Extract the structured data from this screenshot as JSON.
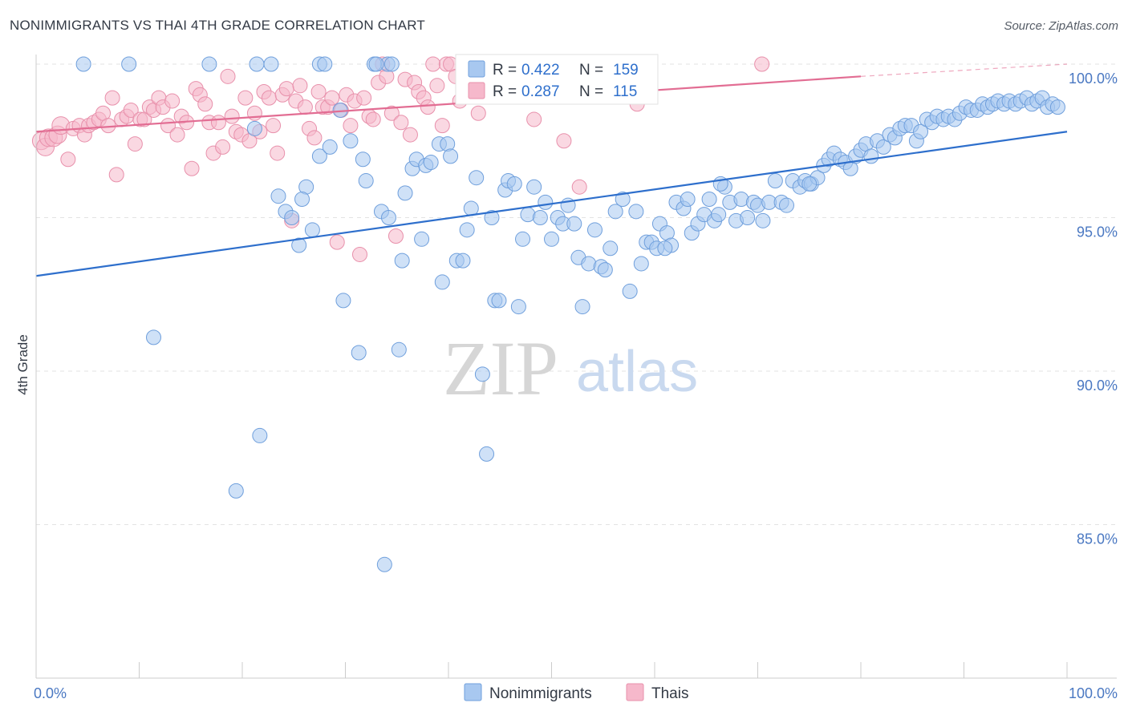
{
  "header": {
    "title": "NONIMMIGRANTS VS THAI 4TH GRADE CORRELATION CHART",
    "source": "Source: ZipAtlas.com"
  },
  "watermark": {
    "zip": "ZIP",
    "atlas": "atlas"
  },
  "chart_data": {
    "type": "scatter",
    "ylabel": "4th Grade",
    "xlim": [
      0,
      100
    ],
    "ylim": [
      80.5,
      100.6
    ],
    "x_ticks": [
      {
        "value": 0,
        "label": "0.0%"
      },
      {
        "value": 100,
        "label": "100.0%"
      }
    ],
    "y_ticks": [
      {
        "value": 100,
        "label": "100.0%"
      },
      {
        "value": 95,
        "label": "95.0%"
      },
      {
        "value": 90,
        "label": "90.0%"
      },
      {
        "value": 85,
        "label": "85.0%"
      }
    ],
    "legend_inset": {
      "position": "top-center",
      "rows": [
        {
          "series": "Nonimmigrants",
          "r_label": "R = ",
          "r_value": "0.422",
          "n_label": "N = ",
          "n_value": "159"
        },
        {
          "series": "Thais",
          "r_label": "R = ",
          "r_value": "0.287",
          "n_label": "N = ",
          "n_value": "115"
        }
      ]
    },
    "legend_bottom": [
      "Nonimmigrants",
      "Thais"
    ],
    "colors": {
      "Nonimmigrants": {
        "fill": "#a8c8f0",
        "stroke": "#6f9fdc",
        "line": "#2e6fcc"
      },
      "Thais": {
        "fill": "#f6b8cb",
        "stroke": "#e890ab",
        "line": "#e26d93"
      }
    },
    "series": [
      {
        "name": "Nonimmigrants",
        "trend": {
          "x": [
            0,
            100
          ],
          "y": [
            93.1,
            97.8
          ]
        },
        "points": [
          [
            4.6,
            100
          ],
          [
            9,
            100
          ],
          [
            16.8,
            100
          ],
          [
            21.4,
            100
          ],
          [
            22.8,
            100
          ],
          [
            27.5,
            100
          ],
          [
            28,
            100
          ],
          [
            34.1,
            100
          ],
          [
            34.5,
            100
          ],
          [
            11.4,
            91.1
          ],
          [
            19.4,
            86.1
          ],
          [
            21.7,
            87.9
          ],
          [
            25.5,
            94.1
          ],
          [
            26.2,
            96.0
          ],
          [
            27.5,
            97.0
          ],
          [
            28.5,
            97.3
          ],
          [
            29.5,
            98.5
          ],
          [
            23.5,
            95.7
          ],
          [
            24.2,
            95.2
          ],
          [
            24.8,
            95.0
          ],
          [
            25.8,
            95.6
          ],
          [
            26.8,
            94.6
          ],
          [
            29.8,
            92.3
          ],
          [
            30.5,
            97.5
          ],
          [
            31.3,
            90.6
          ],
          [
            31.7,
            96.9
          ],
          [
            32,
            96.2
          ],
          [
            32.8,
            100
          ],
          [
            33,
            100
          ],
          [
            33.5,
            95.2
          ],
          [
            33.8,
            83.7
          ],
          [
            34.2,
            95.0
          ],
          [
            35.2,
            90.7
          ],
          [
            35.5,
            93.6
          ],
          [
            35.8,
            95.8
          ],
          [
            36.5,
            96.6
          ],
          [
            36.9,
            96.9
          ],
          [
            37.4,
            94.3
          ],
          [
            37.8,
            96.7
          ],
          [
            38.3,
            96.8
          ],
          [
            39.1,
            97.4
          ],
          [
            39.4,
            92.9
          ],
          [
            39.9,
            97.4
          ],
          [
            40.2,
            97.0
          ],
          [
            40.8,
            93.6
          ],
          [
            41.4,
            93.6
          ],
          [
            41.8,
            94.6
          ],
          [
            42.2,
            95.3
          ],
          [
            42.7,
            96.3
          ],
          [
            43.3,
            89.9
          ],
          [
            43.7,
            87.3
          ],
          [
            44.2,
            95.0
          ],
          [
            44.5,
            92.3
          ],
          [
            44.9,
            92.3
          ],
          [
            45.5,
            95.9
          ],
          [
            45.8,
            96.2
          ],
          [
            46.4,
            96.1
          ],
          [
            46.8,
            92.1
          ],
          [
            47.2,
            94.3
          ],
          [
            47.7,
            95.1
          ],
          [
            48.3,
            96.0
          ],
          [
            48.9,
            95.0
          ],
          [
            49.4,
            95.5
          ],
          [
            50.0,
            94.3
          ],
          [
            50.6,
            95.0
          ],
          [
            51.1,
            94.8
          ],
          [
            51.6,
            95.4
          ],
          [
            52.2,
            94.8
          ],
          [
            52.6,
            93.7
          ],
          [
            53.0,
            92.1
          ],
          [
            53.6,
            93.5
          ],
          [
            54.2,
            94.6
          ],
          [
            54.8,
            93.4
          ],
          [
            55.2,
            93.3
          ],
          [
            55.7,
            94.0
          ],
          [
            56.2,
            95.2
          ],
          [
            56.9,
            95.6
          ],
          [
            57.6,
            92.6
          ],
          [
            58.2,
            95.2
          ],
          [
            58.7,
            93.5
          ],
          [
            59.2,
            94.2
          ],
          [
            59.7,
            94.2
          ],
          [
            60.2,
            94.0
          ],
          [
            60.5,
            94.8
          ],
          [
            61.2,
            94.5
          ],
          [
            61.6,
            94.1
          ],
          [
            62.1,
            95.5
          ],
          [
            62.8,
            95.3
          ],
          [
            63.2,
            95.6
          ],
          [
            63.6,
            94.5
          ],
          [
            64.2,
            94.8
          ],
          [
            64.8,
            95.1
          ],
          [
            65.3,
            95.6
          ],
          [
            65.8,
            94.9
          ],
          [
            66.2,
            95.1
          ],
          [
            66.8,
            96.0
          ],
          [
            67.3,
            95.5
          ],
          [
            67.9,
            94.9
          ],
          [
            68.4,
            95.6
          ],
          [
            69.0,
            95.0
          ],
          [
            69.6,
            95.5
          ],
          [
            70.0,
            95.4
          ],
          [
            70.5,
            94.9
          ],
          [
            71.1,
            95.5
          ],
          [
            71.7,
            96.2
          ],
          [
            72.3,
            95.5
          ],
          [
            72.8,
            95.4
          ],
          [
            73.4,
            96.2
          ],
          [
            74.1,
            96.0
          ],
          [
            74.6,
            96.2
          ],
          [
            75.2,
            96.1
          ],
          [
            75.8,
            96.3
          ],
          [
            76.4,
            96.7
          ],
          [
            76.9,
            96.9
          ],
          [
            77.4,
            97.1
          ],
          [
            78.0,
            96.9
          ],
          [
            78.5,
            96.8
          ],
          [
            79.0,
            96.6
          ],
          [
            79.5,
            97.0
          ],
          [
            80.0,
            97.2
          ],
          [
            80.5,
            97.4
          ],
          [
            81.0,
            97.0
          ],
          [
            81.6,
            97.5
          ],
          [
            82.2,
            97.3
          ],
          [
            82.8,
            97.7
          ],
          [
            83.3,
            97.6
          ],
          [
            83.8,
            97.9
          ],
          [
            84.3,
            98.0
          ],
          [
            84.9,
            98.0
          ],
          [
            85.4,
            97.5
          ],
          [
            85.8,
            97.8
          ],
          [
            86.4,
            98.2
          ],
          [
            86.9,
            98.1
          ],
          [
            87.4,
            98.3
          ],
          [
            88.0,
            98.2
          ],
          [
            88.5,
            98.3
          ],
          [
            89.1,
            98.2
          ],
          [
            89.6,
            98.4
          ],
          [
            90.2,
            98.6
          ],
          [
            90.7,
            98.5
          ],
          [
            91.3,
            98.5
          ],
          [
            91.8,
            98.7
          ],
          [
            92.3,
            98.6
          ],
          [
            92.8,
            98.7
          ],
          [
            93.3,
            98.8
          ],
          [
            93.9,
            98.7
          ],
          [
            94.4,
            98.8
          ],
          [
            95.0,
            98.7
          ],
          [
            95.5,
            98.8
          ],
          [
            96.1,
            98.9
          ],
          [
            96.6,
            98.7
          ],
          [
            97.1,
            98.8
          ],
          [
            97.6,
            98.9
          ],
          [
            98.1,
            98.6
          ],
          [
            98.6,
            98.7
          ],
          [
            99.1,
            98.6
          ],
          [
            21.2,
            97.9
          ],
          [
            61.0,
            94.0
          ],
          [
            75.0,
            96.1
          ],
          [
            66.4,
            96.1
          ]
        ]
      },
      {
        "name": "Thais",
        "trend": {
          "x": [
            0,
            80
          ],
          "y": [
            97.8,
            99.6
          ]
        },
        "dashed_extension": {
          "x": [
            80,
            100
          ],
          "y": [
            99.6,
            100.0
          ]
        },
        "points": [
          [
            0.5,
            97.5
          ],
          [
            0.9,
            97.3
          ],
          [
            1.2,
            97.6
          ],
          [
            1.7,
            97.6
          ],
          [
            2.1,
            97.7
          ],
          [
            2.4,
            98.0
          ],
          [
            3.1,
            96.9
          ],
          [
            3.6,
            97.9
          ],
          [
            4.2,
            98.0
          ],
          [
            4.7,
            97.7
          ],
          [
            5.1,
            98.0
          ],
          [
            5.6,
            98.1
          ],
          [
            6.1,
            98.2
          ],
          [
            6.5,
            98.4
          ],
          [
            7.0,
            98.0
          ],
          [
            7.4,
            98.9
          ],
          [
            7.8,
            96.4
          ],
          [
            8.3,
            98.2
          ],
          [
            8.8,
            98.3
          ],
          [
            9.2,
            98.5
          ],
          [
            9.6,
            97.4
          ],
          [
            10.1,
            98.2
          ],
          [
            10.5,
            98.2
          ],
          [
            11.0,
            98.6
          ],
          [
            11.4,
            98.5
          ],
          [
            11.9,
            98.9
          ],
          [
            12.3,
            98.6
          ],
          [
            12.8,
            98.0
          ],
          [
            13.2,
            98.8
          ],
          [
            13.7,
            97.7
          ],
          [
            14.1,
            98.3
          ],
          [
            14.6,
            98.1
          ],
          [
            15.1,
            96.6
          ],
          [
            15.5,
            99.2
          ],
          [
            15.9,
            99.0
          ],
          [
            16.4,
            98.7
          ],
          [
            16.8,
            98.1
          ],
          [
            17.2,
            97.1
          ],
          [
            17.7,
            98.1
          ],
          [
            18.1,
            97.3
          ],
          [
            18.6,
            99.6
          ],
          [
            19.0,
            98.3
          ],
          [
            19.4,
            97.8
          ],
          [
            19.9,
            97.7
          ],
          [
            20.3,
            98.9
          ],
          [
            20.7,
            97.5
          ],
          [
            21.2,
            98.4
          ],
          [
            21.7,
            97.8
          ],
          [
            22.1,
            99.1
          ],
          [
            22.6,
            98.9
          ],
          [
            23.0,
            98.0
          ],
          [
            23.4,
            97.1
          ],
          [
            23.9,
            99.0
          ],
          [
            24.3,
            99.2
          ],
          [
            24.8,
            94.9
          ],
          [
            25.2,
            98.8
          ],
          [
            25.6,
            99.3
          ],
          [
            26.1,
            98.6
          ],
          [
            26.5,
            97.9
          ],
          [
            27.0,
            97.6
          ],
          [
            27.4,
            99.1
          ],
          [
            27.8,
            98.6
          ],
          [
            28.3,
            98.6
          ],
          [
            28.7,
            98.9
          ],
          [
            29.2,
            94.2
          ],
          [
            29.6,
            98.5
          ],
          [
            30.1,
            99.0
          ],
          [
            30.5,
            98.0
          ],
          [
            30.9,
            98.8
          ],
          [
            31.4,
            93.8
          ],
          [
            31.8,
            98.9
          ],
          [
            32.3,
            98.3
          ],
          [
            32.7,
            98.2
          ],
          [
            33.2,
            99.4
          ],
          [
            33.6,
            100
          ],
          [
            34.0,
            99.6
          ],
          [
            34.5,
            98.4
          ],
          [
            34.9,
            94.4
          ],
          [
            35.4,
            98.1
          ],
          [
            35.8,
            99.5
          ],
          [
            36.3,
            97.7
          ],
          [
            36.7,
            99.4
          ],
          [
            37.1,
            99.1
          ],
          [
            37.6,
            98.9
          ],
          [
            38.0,
            98.6
          ],
          [
            38.5,
            100
          ],
          [
            38.9,
            99.3
          ],
          [
            39.4,
            98.0
          ],
          [
            39.8,
            100
          ],
          [
            40.2,
            100
          ],
          [
            40.7,
            99.6
          ],
          [
            41.1,
            98.8
          ],
          [
            41.6,
            100
          ],
          [
            42.0,
            100
          ],
          [
            42.5,
            99.1
          ],
          [
            42.9,
            98.4
          ],
          [
            43.4,
            100
          ],
          [
            43.8,
            99.5
          ],
          [
            44.3,
            99.8
          ],
          [
            44.7,
            99.7
          ],
          [
            45.2,
            99.4
          ],
          [
            45.6,
            99.0
          ],
          [
            46.1,
            99.3
          ],
          [
            46.5,
            100
          ],
          [
            47.0,
            100
          ],
          [
            47.4,
            99.9
          ],
          [
            47.9,
            99.5
          ],
          [
            48.3,
            98.2
          ],
          [
            50.1,
            99.7
          ],
          [
            51.2,
            97.5
          ],
          [
            52.7,
            96.0
          ],
          [
            54.1,
            99.9
          ],
          [
            55.8,
            99.5
          ],
          [
            58.3,
            98.7
          ],
          [
            70.4,
            100
          ]
        ]
      }
    ]
  }
}
